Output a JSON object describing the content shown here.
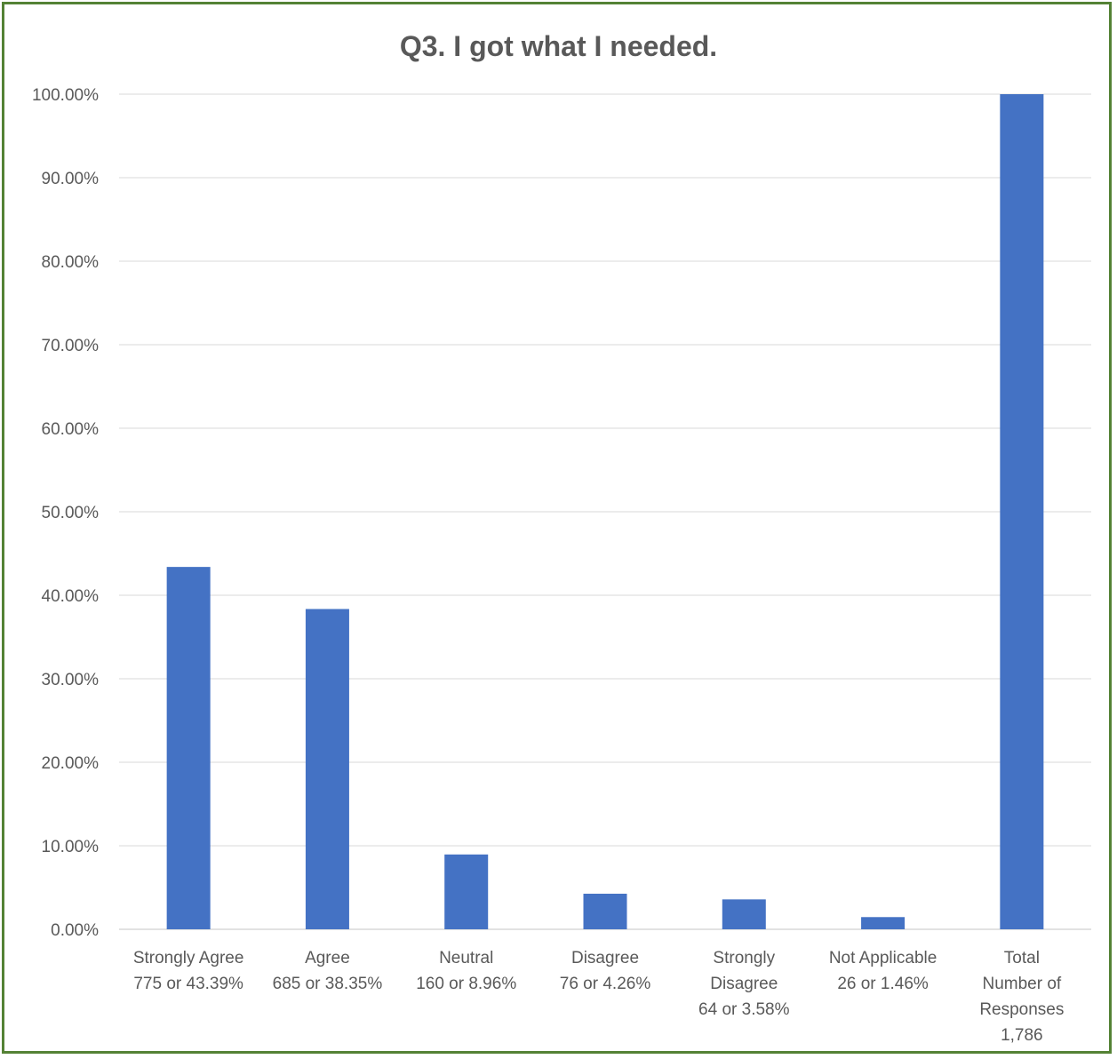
{
  "chart_data": {
    "type": "bar",
    "title": "Q3. I got what I needed.",
    "xlabel": "",
    "ylabel": "",
    "ylim": [
      0,
      100
    ],
    "y_ticks": [
      "0.00%",
      "10.00%",
      "20.00%",
      "30.00%",
      "40.00%",
      "50.00%",
      "60.00%",
      "70.00%",
      "80.00%",
      "90.00%",
      "100.00%"
    ],
    "grid": true,
    "legend": "none",
    "categories": [
      [
        "Strongly Agree",
        "775 or 43.39%"
      ],
      [
        "Agree",
        "685 or 38.35%"
      ],
      [
        "Neutral",
        "160 or 8.96%"
      ],
      [
        "Disagree",
        "76 or 4.26%"
      ],
      [
        "Strongly",
        "Disagree",
        "64 or 3.58%"
      ],
      [
        "Not Applicable",
        "26 or 1.46%"
      ],
      [
        "Total",
        "Number of",
        "Responses",
        "1,786"
      ]
    ],
    "values": [
      43.39,
      38.35,
      8.96,
      4.26,
      3.58,
      1.46,
      100
    ],
    "bar_color": "#4472C4",
    "grid_color": "#D9D9D9",
    "border_color": "#548235"
  }
}
